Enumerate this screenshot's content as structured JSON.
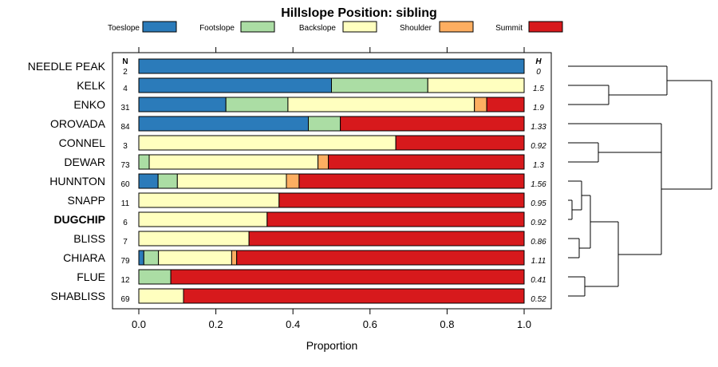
{
  "chart_data": {
    "type": "bar",
    "stacked": true,
    "orientation": "horizontal",
    "title": "Hillslope Position: sibling",
    "xlabel": "Proportion",
    "xlim": [
      0,
      1
    ],
    "x_ticks": [
      "0.0",
      "0.2",
      "0.4",
      "0.6",
      "0.8",
      "1.0"
    ],
    "n_header": "N",
    "h_header": "H",
    "legend": [
      {
        "name": "Toeslope",
        "color": "#2b7bba"
      },
      {
        "name": "Footslope",
        "color": "#abdda4"
      },
      {
        "name": "Backslope",
        "color": "#ffffbf"
      },
      {
        "name": "Shoulder",
        "color": "#fdae61"
      },
      {
        "name": "Summit",
        "color": "#d7191c"
      }
    ],
    "rows": [
      {
        "label": "NEEDLE PEAK",
        "n": "2",
        "h": "0",
        "bold": false,
        "values": [
          1.0,
          0,
          0,
          0,
          0
        ]
      },
      {
        "label": "KELK",
        "n": "4",
        "h": "1.5",
        "bold": false,
        "values": [
          0.5,
          0.25,
          0.25,
          0,
          0
        ]
      },
      {
        "label": "ENKO",
        "n": "31",
        "h": "1.9",
        "bold": false,
        "values": [
          0.226,
          0.161,
          0.484,
          0.032,
          0.097
        ]
      },
      {
        "label": "OROVADA",
        "n": "84",
        "h": "1.33",
        "bold": false,
        "values": [
          0.44,
          0.083,
          0,
          0,
          0.477
        ]
      },
      {
        "label": "CONNEL",
        "n": "3",
        "h": "0.92",
        "bold": false,
        "values": [
          0,
          0,
          0.667,
          0,
          0.333
        ]
      },
      {
        "label": "DEWAR",
        "n": "73",
        "h": "1.3",
        "bold": false,
        "values": [
          0,
          0.027,
          0.438,
          0.027,
          0.508
        ]
      },
      {
        "label": "HUNNTON",
        "n": "60",
        "h": "1.56",
        "bold": false,
        "values": [
          0.05,
          0.05,
          0.283,
          0.033,
          0.584
        ]
      },
      {
        "label": "SNAPP",
        "n": "11",
        "h": "0.95",
        "bold": false,
        "values": [
          0,
          0,
          0.364,
          0,
          0.636
        ]
      },
      {
        "label": "DUGCHIP",
        "n": "6",
        "h": "0.92",
        "bold": true,
        "values": [
          0,
          0,
          0.333,
          0,
          0.667
        ]
      },
      {
        "label": "BLISS",
        "n": "7",
        "h": "0.86",
        "bold": false,
        "values": [
          0,
          0,
          0.286,
          0,
          0.714
        ]
      },
      {
        "label": "CHIARA",
        "n": "79",
        "h": "1.11",
        "bold": false,
        "values": [
          0.013,
          0.038,
          0.19,
          0.013,
          0.746
        ]
      },
      {
        "label": "FLUE",
        "n": "12",
        "h": "0.41",
        "bold": false,
        "values": [
          0,
          0.083,
          0,
          0,
          0.917
        ]
      },
      {
        "label": "SHABLISS",
        "n": "69",
        "h": "0.52",
        "bold": false,
        "values": [
          0,
          0,
          0.116,
          0,
          0.884
        ]
      }
    ]
  }
}
